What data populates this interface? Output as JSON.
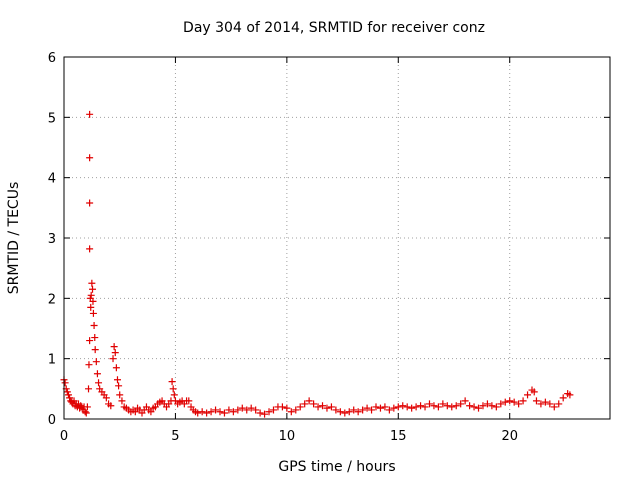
{
  "chart_data": {
    "type": "scatter",
    "title": "Day 304 of 2014, SRMTID for receiver conz",
    "xlabel": "GPS time / hours",
    "ylabel": "SRMTID / TECUs",
    "xlim": [
      0,
      24.5
    ],
    "ylim": [
      0,
      6
    ],
    "xticks": [
      0,
      5,
      10,
      15,
      20
    ],
    "yticks": [
      0,
      1,
      2,
      3,
      4,
      5,
      6
    ],
    "xtick_labels": [
      "0",
      "5",
      "10",
      "15",
      "20"
    ],
    "ytick_labels": [
      "0",
      "1",
      "2",
      "3",
      "4",
      "5",
      "6"
    ],
    "grid": true,
    "marker": "+",
    "color": "#e00000",
    "series": [
      {
        "name": "SRMTID",
        "points": [
          [
            0.0,
            0.65
          ],
          [
            0.05,
            0.6
          ],
          [
            0.1,
            0.5
          ],
          [
            0.15,
            0.45
          ],
          [
            0.2,
            0.4
          ],
          [
            0.25,
            0.35
          ],
          [
            0.3,
            0.3
          ],
          [
            0.35,
            0.28
          ],
          [
            0.4,
            0.25
          ],
          [
            0.45,
            0.3
          ],
          [
            0.5,
            0.22
          ],
          [
            0.55,
            0.25
          ],
          [
            0.6,
            0.2
          ],
          [
            0.65,
            0.25
          ],
          [
            0.7,
            0.18
          ],
          [
            0.75,
            0.22
          ],
          [
            0.8,
            0.2
          ],
          [
            0.85,
            0.15
          ],
          [
            0.9,
            0.2
          ],
          [
            0.95,
            0.12
          ],
          [
            1.0,
            0.1
          ],
          [
            1.05,
            0.2
          ],
          [
            1.1,
            0.5
          ],
          [
            1.12,
            0.9
          ],
          [
            1.15,
            1.3
          ],
          [
            1.15,
            5.05
          ],
          [
            1.15,
            4.33
          ],
          [
            1.15,
            3.58
          ],
          [
            1.15,
            2.82
          ],
          [
            1.18,
            2.0
          ],
          [
            1.2,
            1.85
          ],
          [
            1.22,
            2.05
          ],
          [
            1.25,
            2.25
          ],
          [
            1.28,
            2.15
          ],
          [
            1.3,
            1.95
          ],
          [
            1.32,
            1.75
          ],
          [
            1.35,
            1.55
          ],
          [
            1.38,
            1.35
          ],
          [
            1.4,
            1.15
          ],
          [
            1.45,
            0.95
          ],
          [
            1.5,
            0.75
          ],
          [
            1.55,
            0.6
          ],
          [
            1.6,
            0.5
          ],
          [
            1.7,
            0.45
          ],
          [
            1.8,
            0.4
          ],
          [
            1.9,
            0.35
          ],
          [
            2.0,
            0.25
          ],
          [
            2.1,
            0.22
          ],
          [
            2.2,
            1.0
          ],
          [
            2.25,
            1.2
          ],
          [
            2.3,
            1.1
          ],
          [
            2.35,
            0.85
          ],
          [
            2.4,
            0.65
          ],
          [
            2.45,
            0.55
          ],
          [
            2.5,
            0.4
          ],
          [
            2.6,
            0.3
          ],
          [
            2.7,
            0.2
          ],
          [
            2.8,
            0.18
          ],
          [
            2.9,
            0.15
          ],
          [
            3.0,
            0.12
          ],
          [
            3.1,
            0.15
          ],
          [
            3.2,
            0.12
          ],
          [
            3.3,
            0.18
          ],
          [
            3.4,
            0.15
          ],
          [
            3.5,
            0.1
          ],
          [
            3.6,
            0.15
          ],
          [
            3.7,
            0.2
          ],
          [
            3.8,
            0.15
          ],
          [
            3.9,
            0.12
          ],
          [
            4.0,
            0.18
          ],
          [
            4.1,
            0.2
          ],
          [
            4.2,
            0.25
          ],
          [
            4.3,
            0.28
          ],
          [
            4.4,
            0.3
          ],
          [
            4.5,
            0.25
          ],
          [
            4.6,
            0.2
          ],
          [
            4.7,
            0.25
          ],
          [
            4.8,
            0.3
          ],
          [
            4.85,
            0.62
          ],
          [
            4.9,
            0.5
          ],
          [
            4.95,
            0.4
          ],
          [
            5.0,
            0.3
          ],
          [
            5.1,
            0.25
          ],
          [
            5.2,
            0.28
          ],
          [
            5.3,
            0.3
          ],
          [
            5.4,
            0.25
          ],
          [
            5.5,
            0.3
          ],
          [
            5.6,
            0.3
          ],
          [
            5.7,
            0.2
          ],
          [
            5.8,
            0.15
          ],
          [
            5.9,
            0.12
          ],
          [
            6.0,
            0.1
          ],
          [
            6.2,
            0.12
          ],
          [
            6.4,
            0.1
          ],
          [
            6.6,
            0.12
          ],
          [
            6.8,
            0.15
          ],
          [
            7.0,
            0.12
          ],
          [
            7.2,
            0.1
          ],
          [
            7.4,
            0.15
          ],
          [
            7.6,
            0.12
          ],
          [
            7.8,
            0.15
          ],
          [
            8.0,
            0.18
          ],
          [
            8.2,
            0.15
          ],
          [
            8.4,
            0.18
          ],
          [
            8.6,
            0.15
          ],
          [
            8.8,
            0.1
          ],
          [
            9.0,
            0.08
          ],
          [
            9.2,
            0.12
          ],
          [
            9.4,
            0.15
          ],
          [
            9.6,
            0.2
          ],
          [
            9.8,
            0.2
          ],
          [
            10.0,
            0.18
          ],
          [
            10.2,
            0.12
          ],
          [
            10.4,
            0.15
          ],
          [
            10.6,
            0.2
          ],
          [
            10.8,
            0.25
          ],
          [
            11.0,
            0.3
          ],
          [
            11.2,
            0.25
          ],
          [
            11.4,
            0.2
          ],
          [
            11.6,
            0.22
          ],
          [
            11.8,
            0.18
          ],
          [
            12.0,
            0.2
          ],
          [
            12.2,
            0.15
          ],
          [
            12.4,
            0.12
          ],
          [
            12.6,
            0.1
          ],
          [
            12.8,
            0.12
          ],
          [
            13.0,
            0.15
          ],
          [
            13.2,
            0.12
          ],
          [
            13.4,
            0.15
          ],
          [
            13.6,
            0.18
          ],
          [
            13.8,
            0.15
          ],
          [
            14.0,
            0.2
          ],
          [
            14.2,
            0.18
          ],
          [
            14.4,
            0.2
          ],
          [
            14.6,
            0.15
          ],
          [
            14.8,
            0.18
          ],
          [
            15.0,
            0.2
          ],
          [
            15.2,
            0.22
          ],
          [
            15.4,
            0.2
          ],
          [
            15.6,
            0.18
          ],
          [
            15.8,
            0.2
          ],
          [
            16.0,
            0.22
          ],
          [
            16.2,
            0.2
          ],
          [
            16.4,
            0.25
          ],
          [
            16.6,
            0.22
          ],
          [
            16.8,
            0.2
          ],
          [
            17.0,
            0.25
          ],
          [
            17.2,
            0.22
          ],
          [
            17.4,
            0.2
          ],
          [
            17.6,
            0.22
          ],
          [
            17.8,
            0.25
          ],
          [
            18.0,
            0.3
          ],
          [
            18.2,
            0.22
          ],
          [
            18.4,
            0.2
          ],
          [
            18.6,
            0.18
          ],
          [
            18.8,
            0.22
          ],
          [
            19.0,
            0.25
          ],
          [
            19.2,
            0.22
          ],
          [
            19.4,
            0.2
          ],
          [
            19.6,
            0.25
          ],
          [
            19.8,
            0.28
          ],
          [
            20.0,
            0.3
          ],
          [
            20.2,
            0.28
          ],
          [
            20.4,
            0.25
          ],
          [
            20.6,
            0.3
          ],
          [
            20.8,
            0.4
          ],
          [
            21.0,
            0.48
          ],
          [
            21.1,
            0.45
          ],
          [
            21.2,
            0.3
          ],
          [
            21.4,
            0.25
          ],
          [
            21.6,
            0.28
          ],
          [
            21.8,
            0.25
          ],
          [
            22.0,
            0.2
          ],
          [
            22.2,
            0.25
          ],
          [
            22.4,
            0.35
          ],
          [
            22.6,
            0.42
          ],
          [
            22.7,
            0.4
          ]
        ]
      }
    ]
  }
}
